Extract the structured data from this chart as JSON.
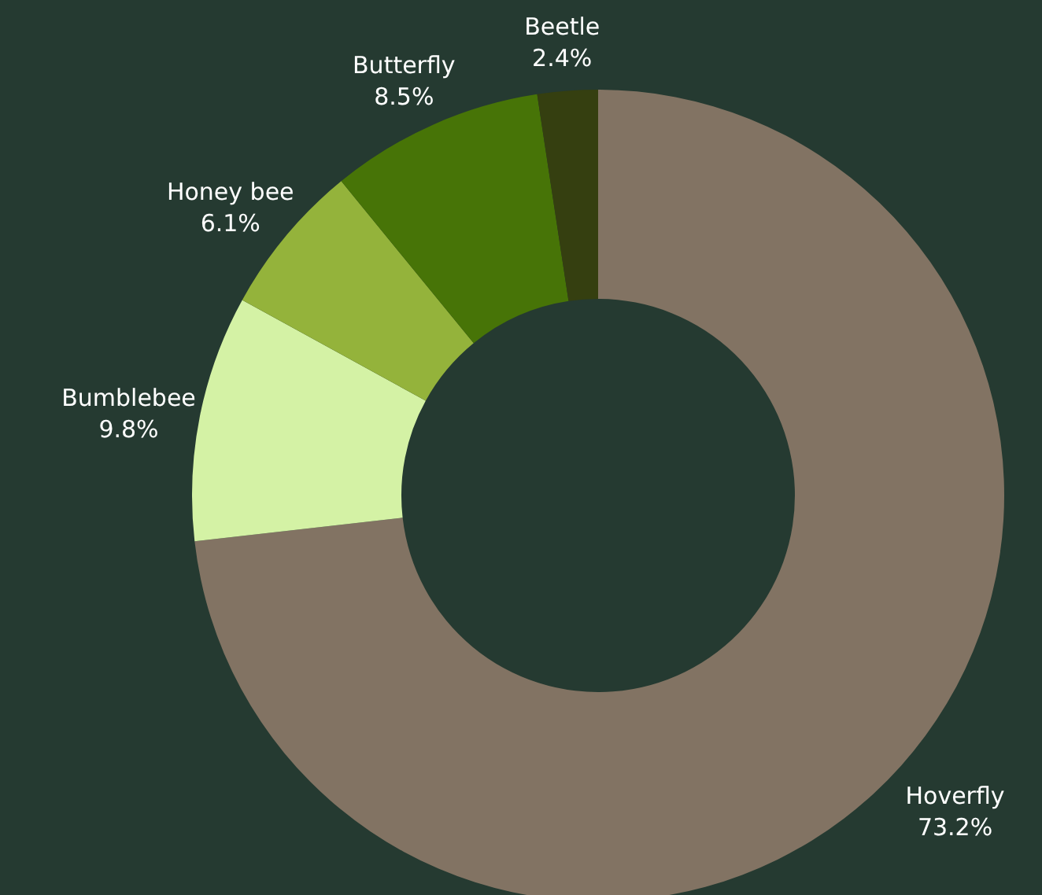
{
  "chart_data": {
    "type": "donut",
    "categories": [
      "Hoverfly",
      "Bumblebee",
      "Honey bee",
      "Butterfly",
      "Beetle"
    ],
    "values": [
      73.2,
      9.8,
      6.1,
      8.5,
      2.4
    ],
    "value_labels": [
      "73.2%",
      "9.8%",
      "6.1%",
      "8.5%",
      "2.4%"
    ],
    "colors": [
      "#827363",
      "#d4f2a5",
      "#94b33b",
      "#477407",
      "#353f10"
    ]
  }
}
